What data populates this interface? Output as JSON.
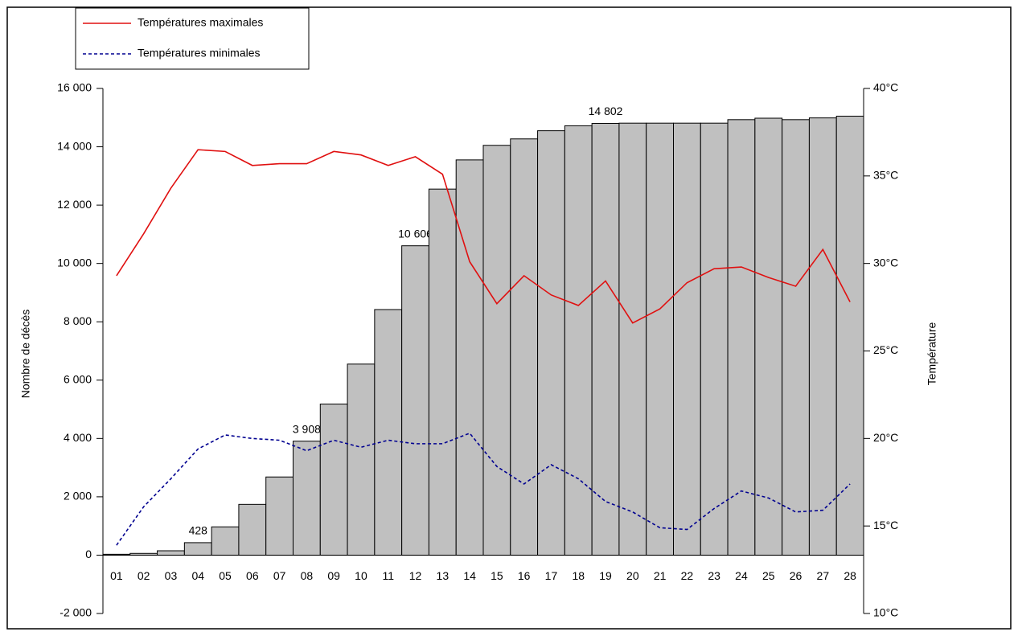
{
  "chart_data": {
    "type": "combo",
    "y_label": "Nombre de décès",
    "y2_label": "Température",
    "categories": [
      "01",
      "02",
      "03",
      "04",
      "05",
      "06",
      "07",
      "08",
      "09",
      "10",
      "11",
      "12",
      "13",
      "14",
      "15",
      "16",
      "17",
      "18",
      "19",
      "20",
      "21",
      "22",
      "23",
      "24",
      "25",
      "26",
      "27",
      "28"
    ],
    "bars": {
      "color": "#c0c0c0",
      "values": [
        30,
        60,
        150,
        428,
        970,
        1740,
        2680,
        3908,
        5180,
        6550,
        8420,
        10606,
        12550,
        13550,
        14050,
        14270,
        14550,
        14720,
        14802,
        14810,
        14810,
        14810,
        14810,
        14930,
        14980,
        14930,
        14990,
        15050
      ],
      "value_labels": [
        null,
        null,
        null,
        "428",
        null,
        null,
        null,
        "3 908",
        null,
        null,
        null,
        "10 606",
        null,
        null,
        null,
        null,
        null,
        null,
        "14 802",
        null,
        null,
        null,
        null,
        null,
        null,
        null,
        null,
        null
      ]
    },
    "series": [
      {
        "name": "Températures maximales",
        "color": "#e01010",
        "dash": "solid",
        "axis": "y2",
        "values": [
          29.3,
          31.7,
          34.3,
          36.5,
          36.4,
          35.6,
          35.7,
          35.7,
          36.4,
          36.2,
          35.6,
          36.1,
          35.1,
          30.1,
          27.7,
          29.3,
          28.2,
          27.6,
          29.0,
          26.6,
          27.4,
          28.9,
          29.7,
          29.8,
          29.2,
          28.7,
          30.8,
          27.8
        ]
      },
      {
        "name": "Températures minimales",
        "color": "#000090",
        "dash": "dashed",
        "axis": "y2",
        "values": [
          13.9,
          16.1,
          17.7,
          19.4,
          20.2,
          20.0,
          19.9,
          19.3,
          19.9,
          19.5,
          19.9,
          19.7,
          19.7,
          20.3,
          18.4,
          17.4,
          18.5,
          17.7,
          16.4,
          15.8,
          14.9,
          14.8,
          16.0,
          17.0,
          16.6,
          15.8,
          15.9,
          17.4
        ]
      }
    ],
    "ylim": [
      -2000,
      16000
    ],
    "yticks": [
      {
        "value": -2000,
        "label": "-2 000"
      },
      0,
      {
        "value": 2000,
        "label": "2 000"
      },
      {
        "value": 4000,
        "label": "4 000"
      },
      {
        "value": 6000,
        "label": "6 000"
      },
      {
        "value": 8000,
        "label": "8 000"
      },
      {
        "value": 10000,
        "label": "10 000"
      },
      {
        "value": 12000,
        "label": "12 000"
      },
      {
        "value": 14000,
        "label": "14 000"
      },
      {
        "value": 16000,
        "label": "16 000"
      }
    ],
    "y2lim": [
      10,
      40
    ],
    "y2ticks": [
      {
        "value": 10,
        "label": "10°C"
      },
      {
        "value": 15,
        "label": "15°C"
      },
      {
        "value": 20,
        "label": "20°C"
      },
      {
        "value": 25,
        "label": "25°C"
      },
      {
        "value": 30,
        "label": "30°C"
      },
      {
        "value": 35,
        "label": "35°C"
      },
      {
        "value": 40,
        "label": "40°C"
      }
    ],
    "legend": "top-left"
  }
}
